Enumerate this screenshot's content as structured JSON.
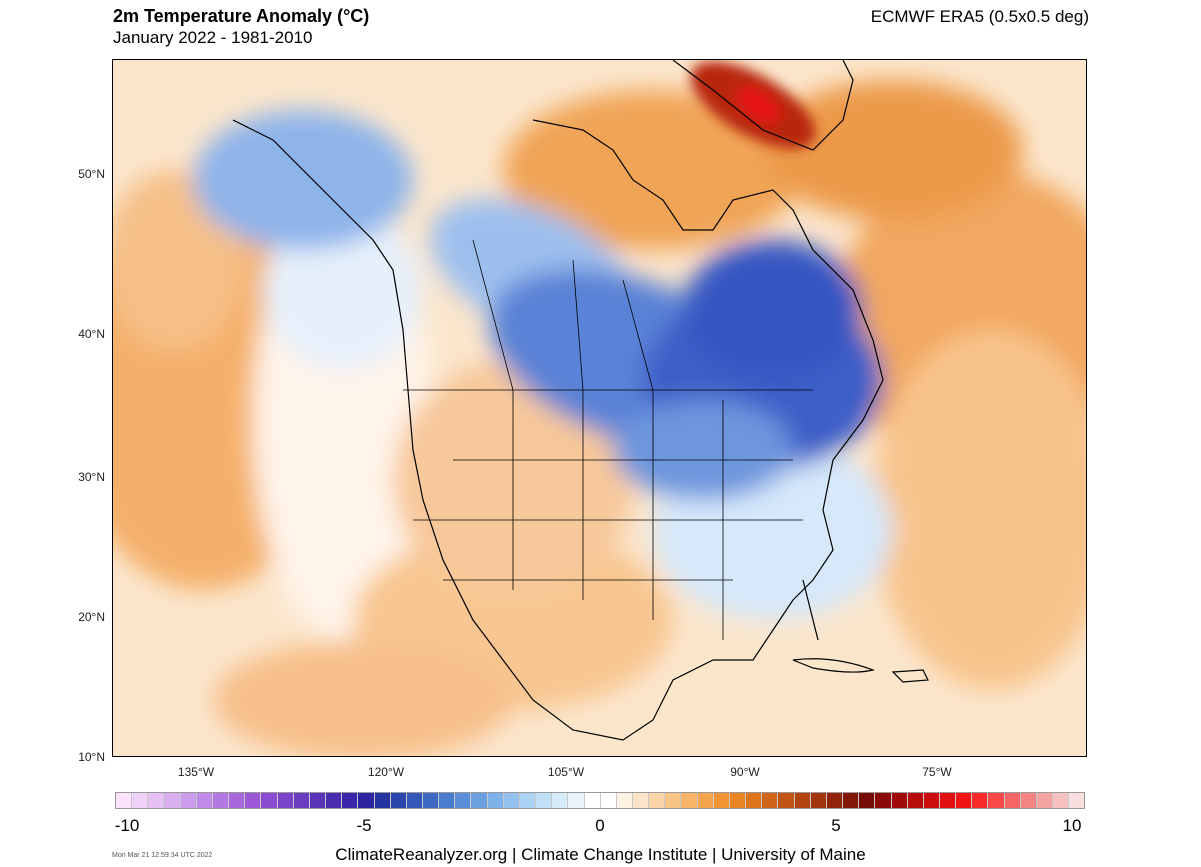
{
  "header": {
    "title": "2m Temperature Anomaly (°C)",
    "subtitle": "January 2022 - 1981-2010",
    "source": "ECMWF ERA5 (0.5x0.5 deg)"
  },
  "map": {
    "projection": "mercator-like",
    "lat_labels": [
      "50°N",
      "40°N",
      "30°N",
      "20°N",
      "10°N"
    ],
    "lon_labels": [
      "135°W",
      "120°W",
      "105°W",
      "90°W",
      "75°W"
    ],
    "anomaly_regions": [
      {
        "name": "greenland-warm-core",
        "anomaly": 7
      },
      {
        "name": "canadian-prairies-cold",
        "anomaly": -5
      },
      {
        "name": "great-lakes-cold",
        "anomaly": -5.5
      },
      {
        "name": "alaska-cold",
        "anomaly": -4
      },
      {
        "name": "north-pacific-warm",
        "anomaly": 2
      },
      {
        "name": "north-atlantic-warm",
        "anomaly": 2.5
      },
      {
        "name": "mexico-warm",
        "anomaly": 1.5
      }
    ]
  },
  "colorbar": {
    "min": -10,
    "max": 10,
    "tick_labels": [
      "-10",
      "-5",
      "0",
      "5",
      "10"
    ],
    "colors": [
      "#fce4fc",
      "#f0d2f8",
      "#e4c0f4",
      "#d8aef0",
      "#cc9cec",
      "#c08ae8",
      "#b478e2",
      "#a868dc",
      "#9c58d6",
      "#8a4cd0",
      "#7a44c8",
      "#6a3cc0",
      "#5a34b8",
      "#4a2cb0",
      "#3a26a8",
      "#2c24a0",
      "#2434a0",
      "#2a46ac",
      "#3458b8",
      "#3e6ac4",
      "#4a7cce",
      "#5a8ed8",
      "#6aa0e0",
      "#7eb2e8",
      "#94c2ee",
      "#aad2f4",
      "#c0e0f8",
      "#d6ecfb",
      "#eaf4fd",
      "#ffffff",
      "#ffffff",
      "#fdf2e4",
      "#fbe4c8",
      "#fad4a8",
      "#f8c488",
      "#f6b468",
      "#f4a44c",
      "#f09434",
      "#e88424",
      "#de741c",
      "#d06418",
      "#c25414",
      "#b24410",
      "#a2340e",
      "#92240c",
      "#841808",
      "#760c06",
      "#8a0a0a",
      "#a00a0a",
      "#b60c0c",
      "#cc0e0e",
      "#e01010",
      "#f01414",
      "#f82a2a",
      "#f84848",
      "#f66666",
      "#f48484",
      "#f4a2a2",
      "#f6c0c0",
      "#f8dede"
    ]
  },
  "footer": {
    "credits": "ClimateReanalyzer.org | Climate Change Institute | University of Maine",
    "timestamp": "Mon Mar 21 12:59:34 UTC 2022"
  }
}
